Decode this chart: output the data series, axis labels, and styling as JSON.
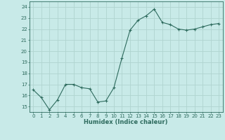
{
  "x": [
    0,
    1,
    2,
    3,
    4,
    5,
    6,
    7,
    8,
    9,
    10,
    11,
    12,
    13,
    14,
    15,
    16,
    17,
    18,
    19,
    20,
    21,
    22,
    23
  ],
  "y": [
    16.5,
    15.8,
    14.7,
    15.6,
    17.0,
    17.0,
    16.7,
    16.6,
    15.4,
    15.5,
    16.7,
    19.4,
    21.9,
    22.8,
    23.2,
    23.8,
    22.6,
    22.4,
    22.0,
    21.9,
    22.0,
    22.2,
    22.4,
    22.5
  ],
  "line_color": "#2e6b5e",
  "marker": "+",
  "marker_size": 3,
  "bg_color": "#c8eae8",
  "grid_color": "#b0d4d0",
  "xlabel": "Humidex (Indice chaleur)",
  "xlim": [
    -0.5,
    23.5
  ],
  "ylim": [
    14.5,
    24.5
  ],
  "yticks": [
    15,
    16,
    17,
    18,
    19,
    20,
    21,
    22,
    23,
    24
  ],
  "xticks": [
    0,
    1,
    2,
    3,
    4,
    5,
    6,
    7,
    8,
    9,
    10,
    11,
    12,
    13,
    14,
    15,
    16,
    17,
    18,
    19,
    20,
    21,
    22,
    23
  ],
  "tick_color": "#2e6b5e",
  "label_color": "#2e6b5e",
  "tick_fontsize": 5.0,
  "xlabel_fontsize": 6.0
}
